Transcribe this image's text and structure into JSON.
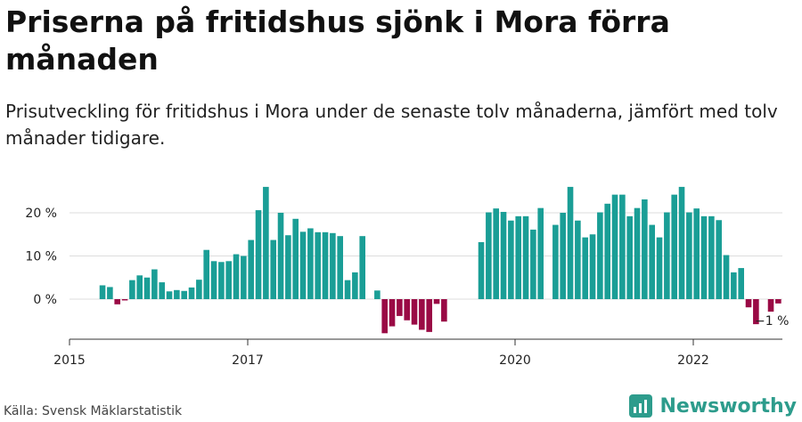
{
  "header": {
    "title": "Priserna på fritidshus sjönk i Mora förra månaden",
    "subtitle": "Prisutveckling för fritidshus i Mora under de senaste tolv månaderna, jämfört med tolv månader tidigare."
  },
  "footer": {
    "source": "Källa: Svensk Mäklarstatistik",
    "brand": "Newsworthy"
  },
  "colors": {
    "positive": "#1a9e96",
    "negative": "#9a0a45",
    "grid": "#dddddd",
    "axis": "#333333",
    "brand": "#2d9c8c"
  },
  "chart_data": {
    "type": "bar",
    "title": "Priserna på fritidshus sjönk i Mora förra månaden",
    "subtitle": "Prisutveckling för fritidshus i Mora under de senaste tolv månaderna, jämfört med tolv månader tidigare.",
    "y_unit": "%",
    "ylim": [
      -10,
      30
    ],
    "y_ticks": [
      {
        "value": 0,
        "label": "0 %"
      },
      {
        "value": 10,
        "label": "10 %"
      },
      {
        "value": 20,
        "label": "20 %"
      }
    ],
    "x_ticks": [
      {
        "date": "2015-01",
        "label": "2015"
      },
      {
        "date": "2017-01",
        "label": "2017"
      },
      {
        "date": "2020-01",
        "label": "2020"
      },
      {
        "date": "2022-01",
        "label": "2022"
      }
    ],
    "x_range": [
      "2015-01",
      "2023-01"
    ],
    "grid": true,
    "annotation": {
      "date": "2022-10",
      "label": "−1 %"
    },
    "bars": [
      {
        "date": "2015-05",
        "value": 3.2
      },
      {
        "date": "2015-06",
        "value": 2.8
      },
      {
        "date": "2015-07",
        "value": -1.2
      },
      {
        "date": "2015-08",
        "value": -0.3
      },
      {
        "date": "2015-09",
        "value": 4.4
      },
      {
        "date": "2015-10",
        "value": 5.5
      },
      {
        "date": "2015-11",
        "value": 5.0
      },
      {
        "date": "2015-12",
        "value": 6.9
      },
      {
        "date": "2016-01",
        "value": 3.9
      },
      {
        "date": "2016-02",
        "value": 1.8
      },
      {
        "date": "2016-03",
        "value": 2.1
      },
      {
        "date": "2016-04",
        "value": 1.9
      },
      {
        "date": "2016-05",
        "value": 2.7
      },
      {
        "date": "2016-06",
        "value": 4.5
      },
      {
        "date": "2016-07",
        "value": 11.4
      },
      {
        "date": "2016-08",
        "value": 8.8
      },
      {
        "date": "2016-09",
        "value": 8.6
      },
      {
        "date": "2016-10",
        "value": 8.8
      },
      {
        "date": "2016-11",
        "value": 10.4
      },
      {
        "date": "2016-12",
        "value": 10.0
      },
      {
        "date": "2017-01",
        "value": 13.7
      },
      {
        "date": "2017-02",
        "value": 20.6
      },
      {
        "date": "2017-03",
        "value": 26.0
      },
      {
        "date": "2017-04",
        "value": 13.7
      },
      {
        "date": "2017-05",
        "value": 20.0
      },
      {
        "date": "2017-06",
        "value": 14.8
      },
      {
        "date": "2017-07",
        "value": 18.6
      },
      {
        "date": "2017-08",
        "value": 15.6
      },
      {
        "date": "2017-09",
        "value": 16.4
      },
      {
        "date": "2017-10",
        "value": 15.5
      },
      {
        "date": "2017-11",
        "value": 15.5
      },
      {
        "date": "2017-12",
        "value": 15.3
      },
      {
        "date": "2018-01",
        "value": 14.6
      },
      {
        "date": "2018-02",
        "value": 4.4
      },
      {
        "date": "2018-03",
        "value": 6.2
      },
      {
        "date": "2018-04",
        "value": 14.6
      },
      {
        "date": "2018-06",
        "value": 2.0
      },
      {
        "date": "2018-07",
        "value": -7.9
      },
      {
        "date": "2018-08",
        "value": -6.3
      },
      {
        "date": "2018-09",
        "value": -3.9
      },
      {
        "date": "2018-10",
        "value": -4.9
      },
      {
        "date": "2018-11",
        "value": -5.9
      },
      {
        "date": "2018-12",
        "value": -7.1
      },
      {
        "date": "2019-01",
        "value": -7.6
      },
      {
        "date": "2019-02",
        "value": -1.1
      },
      {
        "date": "2019-03",
        "value": -5.2
      },
      {
        "date": "2019-08",
        "value": 13.2
      },
      {
        "date": "2019-09",
        "value": 20.1
      },
      {
        "date": "2019-10",
        "value": 21.0
      },
      {
        "date": "2019-11",
        "value": 20.2
      },
      {
        "date": "2019-12",
        "value": 18.2
      },
      {
        "date": "2020-01",
        "value": 19.2
      },
      {
        "date": "2020-02",
        "value": 19.2
      },
      {
        "date": "2020-03",
        "value": 16.1
      },
      {
        "date": "2020-04",
        "value": 21.1
      },
      {
        "date": "2020-06",
        "value": 17.2
      },
      {
        "date": "2020-07",
        "value": 20.0
      },
      {
        "date": "2020-08",
        "value": 26.0
      },
      {
        "date": "2020-09",
        "value": 18.2
      },
      {
        "date": "2020-10",
        "value": 14.3
      },
      {
        "date": "2020-11",
        "value": 15.0
      },
      {
        "date": "2020-12",
        "value": 20.1
      },
      {
        "date": "2021-01",
        "value": 22.1
      },
      {
        "date": "2021-02",
        "value": 24.2
      },
      {
        "date": "2021-03",
        "value": 24.2
      },
      {
        "date": "2021-04",
        "value": 19.2
      },
      {
        "date": "2021-05",
        "value": 21.1
      },
      {
        "date": "2021-06",
        "value": 23.1
      },
      {
        "date": "2021-07",
        "value": 17.2
      },
      {
        "date": "2021-08",
        "value": 14.3
      },
      {
        "date": "2021-09",
        "value": 20.1
      },
      {
        "date": "2021-10",
        "value": 24.2
      },
      {
        "date": "2021-11",
        "value": 26.0
      },
      {
        "date": "2021-12",
        "value": 20.1
      },
      {
        "date": "2022-01",
        "value": 21.0
      },
      {
        "date": "2022-02",
        "value": 19.2
      },
      {
        "date": "2022-03",
        "value": 19.2
      },
      {
        "date": "2022-04",
        "value": 18.3
      },
      {
        "date": "2022-05",
        "value": 10.2
      },
      {
        "date": "2022-06",
        "value": 6.2
      },
      {
        "date": "2022-07",
        "value": 7.2
      },
      {
        "date": "2022-08",
        "value": -1.9
      },
      {
        "date": "2022-09",
        "value": -5.8
      },
      {
        "date": "2022-11",
        "value": -2.9
      },
      {
        "date": "2022-12",
        "value": -1.0
      }
    ]
  }
}
